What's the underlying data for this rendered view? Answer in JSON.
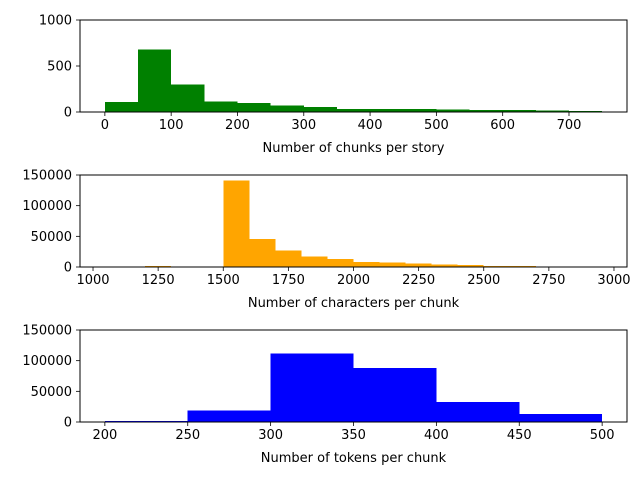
{
  "chart_data": [
    {
      "type": "bar",
      "xlabel": "Number of chunks per story",
      "ylabel": "",
      "color": "#008000",
      "xlim": [
        -37.5,
        787.5
      ],
      "ylim": [
        0,
        1000
      ],
      "xticks": [
        0,
        100,
        200,
        300,
        400,
        500,
        600,
        700
      ],
      "yticks": [
        0,
        500,
        1000
      ],
      "bins": [
        {
          "x0": 0,
          "x1": 50,
          "value": 110
        },
        {
          "x0": 50,
          "x1": 100,
          "value": 680
        },
        {
          "x0": 100,
          "x1": 150,
          "value": 300
        },
        {
          "x0": 150,
          "x1": 200,
          "value": 115
        },
        {
          "x0": 200,
          "x1": 250,
          "value": 100
        },
        {
          "x0": 250,
          "x1": 300,
          "value": 70
        },
        {
          "x0": 300,
          "x1": 350,
          "value": 55
        },
        {
          "x0": 350,
          "x1": 400,
          "value": 35
        },
        {
          "x0": 400,
          "x1": 450,
          "value": 35
        },
        {
          "x0": 450,
          "x1": 500,
          "value": 32
        },
        {
          "x0": 500,
          "x1": 550,
          "value": 25
        },
        {
          "x0": 550,
          "x1": 600,
          "value": 22
        },
        {
          "x0": 600,
          "x1": 650,
          "value": 20
        },
        {
          "x0": 650,
          "x1": 700,
          "value": 18
        },
        {
          "x0": 700,
          "x1": 750,
          "value": 10
        }
      ]
    },
    {
      "type": "bar",
      "xlabel": "Number of characters per chunk",
      "ylabel": "",
      "color": "#FFA500",
      "xlim": [
        950,
        3050
      ],
      "ylim": [
        0,
        150000
      ],
      "xticks": [
        1000,
        1250,
        1500,
        1750,
        2000,
        2250,
        2500,
        2750,
        3000
      ],
      "yticks": [
        0,
        50000,
        100000,
        150000
      ],
      "bins": [
        {
          "x0": 1200,
          "x1": 1300,
          "value": 1500
        },
        {
          "x0": 1500,
          "x1": 1600,
          "value": 141000
        },
        {
          "x0": 1600,
          "x1": 1700,
          "value": 46000
        },
        {
          "x0": 1700,
          "x1": 1800,
          "value": 27000
        },
        {
          "x0": 1800,
          "x1": 1900,
          "value": 17000
        },
        {
          "x0": 1900,
          "x1": 2000,
          "value": 13000
        },
        {
          "x0": 2000,
          "x1": 2100,
          "value": 8500
        },
        {
          "x0": 2100,
          "x1": 2200,
          "value": 7000
        },
        {
          "x0": 2200,
          "x1": 2300,
          "value": 5500
        },
        {
          "x0": 2300,
          "x1": 2400,
          "value": 4000
        },
        {
          "x0": 2400,
          "x1": 2500,
          "value": 3000
        },
        {
          "x0": 2500,
          "x1": 2600,
          "value": 2000
        },
        {
          "x0": 2600,
          "x1": 2700,
          "value": 1500
        },
        {
          "x0": 2700,
          "x1": 2800,
          "value": 1200
        },
        {
          "x0": 2800,
          "x1": 2900,
          "value": 800
        }
      ]
    },
    {
      "type": "bar",
      "xlabel": "Number of tokens per chunk",
      "ylabel": "",
      "color": "#0000FF",
      "xlim": [
        185,
        515
      ],
      "ylim": [
        0,
        150000
      ],
      "xticks": [
        200,
        250,
        300,
        350,
        400,
        450,
        500
      ],
      "yticks": [
        0,
        50000,
        100000,
        150000
      ],
      "bins": [
        {
          "x0": 200,
          "x1": 250,
          "value": 1500
        },
        {
          "x0": 250,
          "x1": 300,
          "value": 19000
        },
        {
          "x0": 300,
          "x1": 350,
          "value": 112000
        },
        {
          "x0": 350,
          "x1": 400,
          "value": 88000
        },
        {
          "x0": 400,
          "x1": 450,
          "value": 33000
        },
        {
          "x0": 450,
          "x1": 500,
          "value": 13000
        }
      ]
    }
  ]
}
